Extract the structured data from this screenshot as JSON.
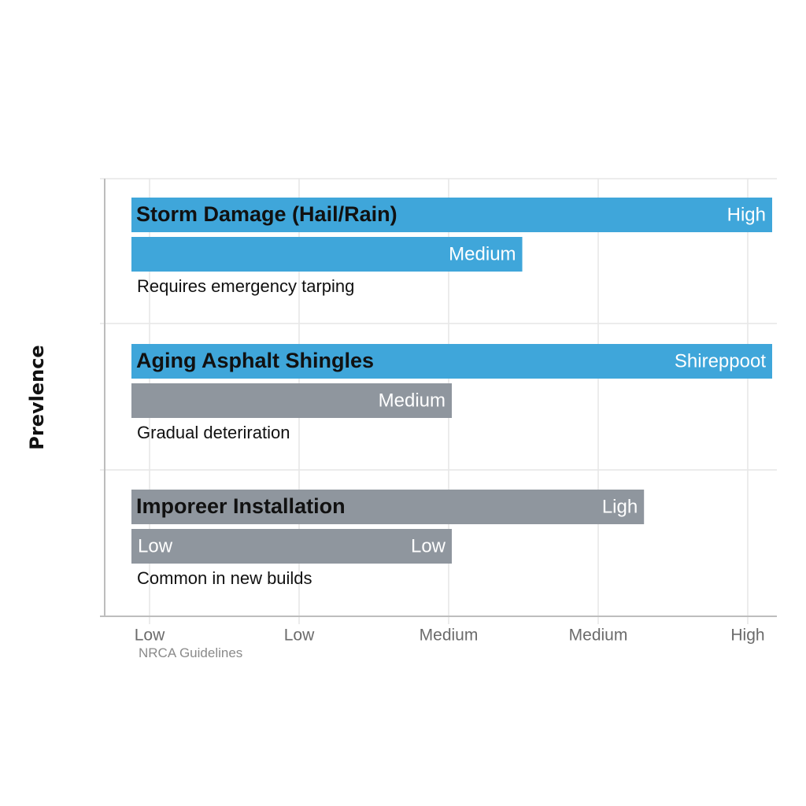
{
  "chart_data": {
    "type": "bar",
    "orientation": "horizontal",
    "ylabel": "Prevlence",
    "x_ticks": [
      "Low",
      "Low",
      "Medium",
      "Medium",
      "High"
    ],
    "source": "NRCA Guidelines",
    "grid": true,
    "colors": {
      "blue": "#3fa6da",
      "gray": "#8f969e"
    },
    "groups": [
      {
        "label": "Storm Damage (Hail/Rain)",
        "note": "Requires emergency tarping",
        "bars": [
          {
            "value": 1.0,
            "color": "blue",
            "end_label": "High"
          },
          {
            "value": 0.61,
            "color": "blue",
            "end_label": "Medium"
          }
        ]
      },
      {
        "label": "Aging Asphalt Shingles",
        "note": "Gradual deteriration",
        "bars": [
          {
            "value": 1.0,
            "color": "blue",
            "end_label": "Shireppoot"
          },
          {
            "value": 0.5,
            "color": "gray",
            "end_label": "Medium"
          }
        ]
      },
      {
        "label": "Imporeer Installation",
        "note": "Common in new builds",
        "bars": [
          {
            "value": 0.8,
            "color": "gray",
            "end_label": "Ligh"
          },
          {
            "value": 0.5,
            "color": "gray",
            "end_label": "Low",
            "start_label": "Low"
          }
        ]
      }
    ]
  }
}
